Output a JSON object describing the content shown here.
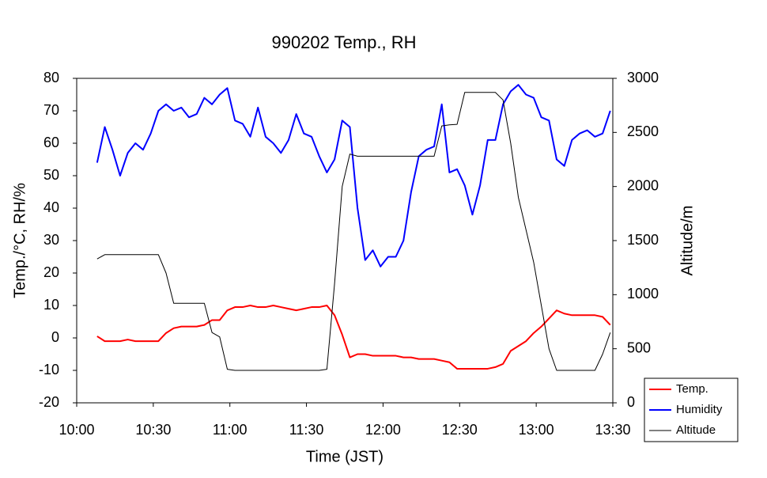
{
  "chart_data": {
    "type": "line",
    "title": "990202 Temp., RH",
    "xlabel": "Time (JST)",
    "ylabel": "Temp./°C, RH/%",
    "y2label": "Altitude/m",
    "x": [
      608,
      611,
      614,
      617,
      620,
      623,
      626,
      629,
      632,
      635,
      638,
      641,
      644,
      647,
      650,
      653,
      656,
      659,
      662,
      665,
      668,
      671,
      674,
      677,
      680,
      683,
      686,
      689,
      692,
      695,
      698,
      701,
      704,
      707,
      710,
      713,
      716,
      719,
      722,
      725,
      728,
      731,
      734,
      737,
      740,
      743,
      746,
      749,
      752,
      755,
      758,
      761,
      764,
      767,
      770,
      773,
      776,
      779,
      782,
      785,
      788,
      791,
      794,
      797,
      800,
      803,
      806,
      809
    ],
    "xlim": [
      600,
      810
    ],
    "xticks": [
      {
        "value": 600,
        "label": "10:00"
      },
      {
        "value": 630,
        "label": "10:30"
      },
      {
        "value": 660,
        "label": "11:00"
      },
      {
        "value": 690,
        "label": "11:30"
      },
      {
        "value": 720,
        "label": "12:00"
      },
      {
        "value": 750,
        "label": "12:30"
      },
      {
        "value": 780,
        "label": "13:00"
      },
      {
        "value": 810,
        "label": "13:30"
      }
    ],
    "ylim": [
      -20,
      80
    ],
    "yticks": [
      -20,
      -10,
      0,
      10,
      20,
      30,
      40,
      50,
      60,
      70,
      80
    ],
    "y2lim": [
      0,
      3000
    ],
    "y2ticks": [
      0,
      500,
      1000,
      1500,
      2000,
      2500,
      3000
    ],
    "grid": false,
    "legend": "lower right",
    "series": [
      {
        "name": "Temp.",
        "color": "#ff0000",
        "values": [
          0.5,
          -1,
          -1,
          -1,
          -0.5,
          -1,
          -1,
          -1,
          -1,
          1.5,
          3,
          3.5,
          3.5,
          3.5,
          4,
          5.5,
          5.5,
          8.5,
          9.5,
          9.5,
          10,
          9.5,
          9.5,
          10,
          9.5,
          9,
          8.5,
          9,
          9.5,
          9.5,
          10,
          7,
          1,
          -6,
          -5,
          -5,
          -5.5,
          -5.5,
          -5.5,
          -5.5,
          -6,
          -6,
          -6.5,
          -6.5,
          -6.5,
          -7,
          -7.5,
          -9.5,
          -9.5,
          -9.5,
          -9.5,
          -9.5,
          -9,
          -8,
          -4,
          -2.5,
          -1,
          1.5,
          3.5,
          6,
          8.5,
          7.5,
          7,
          7,
          7,
          7,
          6.5,
          4
        ]
      },
      {
        "name": "Humidity",
        "color": "#0000ff",
        "values": [
          54,
          65,
          58,
          50,
          57,
          60,
          58,
          63,
          70,
          72,
          70,
          71,
          68,
          69,
          74,
          72,
          75,
          77,
          67,
          66,
          62,
          71,
          62,
          60,
          57,
          61,
          69,
          63,
          62,
          56,
          51,
          55,
          67,
          65,
          40,
          24,
          27,
          22,
          25,
          25,
          30,
          45,
          56,
          58,
          59,
          72,
          51,
          52,
          47,
          38,
          47,
          61,
          61,
          72,
          76,
          78,
          75,
          74,
          68,
          67,
          55,
          53,
          61,
          63,
          64,
          62,
          63,
          70
        ]
      },
      {
        "name": "Altitude",
        "color": "#000000",
        "axis": "y2",
        "values": [
          1330,
          1370,
          1370,
          1370,
          1370,
          1370,
          1370,
          1370,
          1370,
          1200,
          920,
          920,
          920,
          920,
          920,
          650,
          610,
          310,
          300,
          300,
          300,
          300,
          300,
          300,
          300,
          300,
          300,
          300,
          300,
          300,
          310,
          1100,
          2000,
          2300,
          2280,
          2280,
          2280,
          2280,
          2280,
          2280,
          2280,
          2280,
          2280,
          2280,
          2280,
          2560,
          2570,
          2575,
          2870,
          2870,
          2870,
          2870,
          2870,
          2800,
          2400,
          1900,
          1600,
          1300,
          900,
          500,
          300,
          300,
          300,
          300,
          300,
          300,
          450,
          650
        ]
      }
    ]
  }
}
